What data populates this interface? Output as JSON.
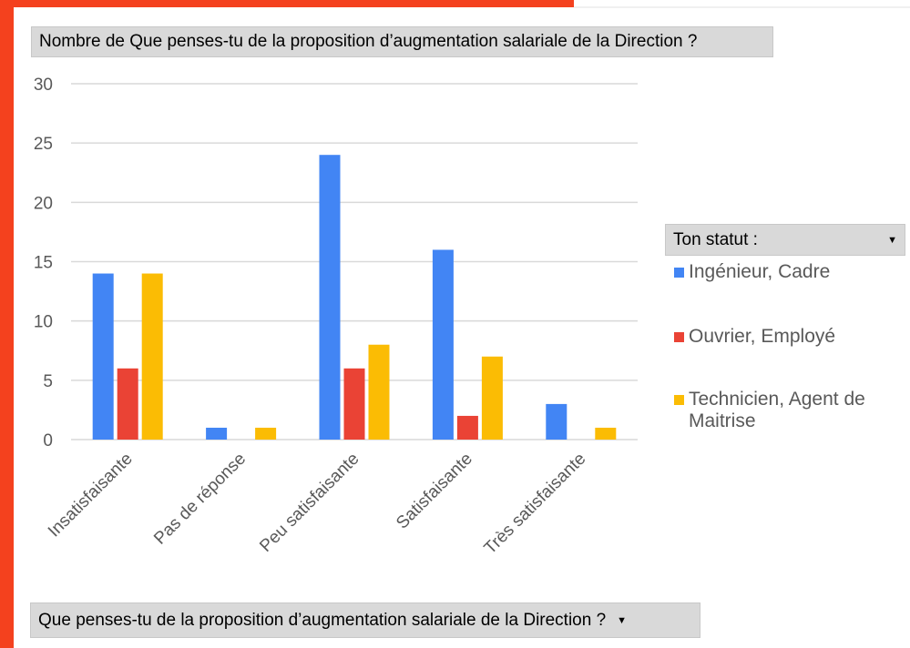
{
  "chart_data": {
    "type": "bar",
    "title": "Nombre de Que penses-tu de la proposition d’augmentation salariale de la Direction ?",
    "categories": [
      "Insatisfaisante",
      "Pas de réponse",
      "Peu satisfaisante",
      "Satisfaisante",
      "Très satisfaisante"
    ],
    "series": [
      {
        "name": "Ingénieur, Cadre",
        "color": "#4285f4",
        "values": [
          14,
          1,
          24,
          16,
          3
        ]
      },
      {
        "name": "Ouvrier, Employé",
        "color": "#ea4335",
        "values": [
          6,
          null,
          6,
          2,
          null
        ]
      },
      {
        "name": "Technicien, Agent de Maitrise",
        "color": "#fbbc04",
        "values": [
          14,
          1,
          8,
          7,
          1
        ]
      }
    ],
    "ylim": [
      0,
      30
    ],
    "yticks": [
      0,
      5,
      10,
      15,
      20,
      25,
      30
    ],
    "grid": true,
    "legend_title": "Ton statut :",
    "legend_position": "right",
    "x_field_button": "Que penses-tu de la proposition d’augmentation salariale de la Direction ?"
  }
}
